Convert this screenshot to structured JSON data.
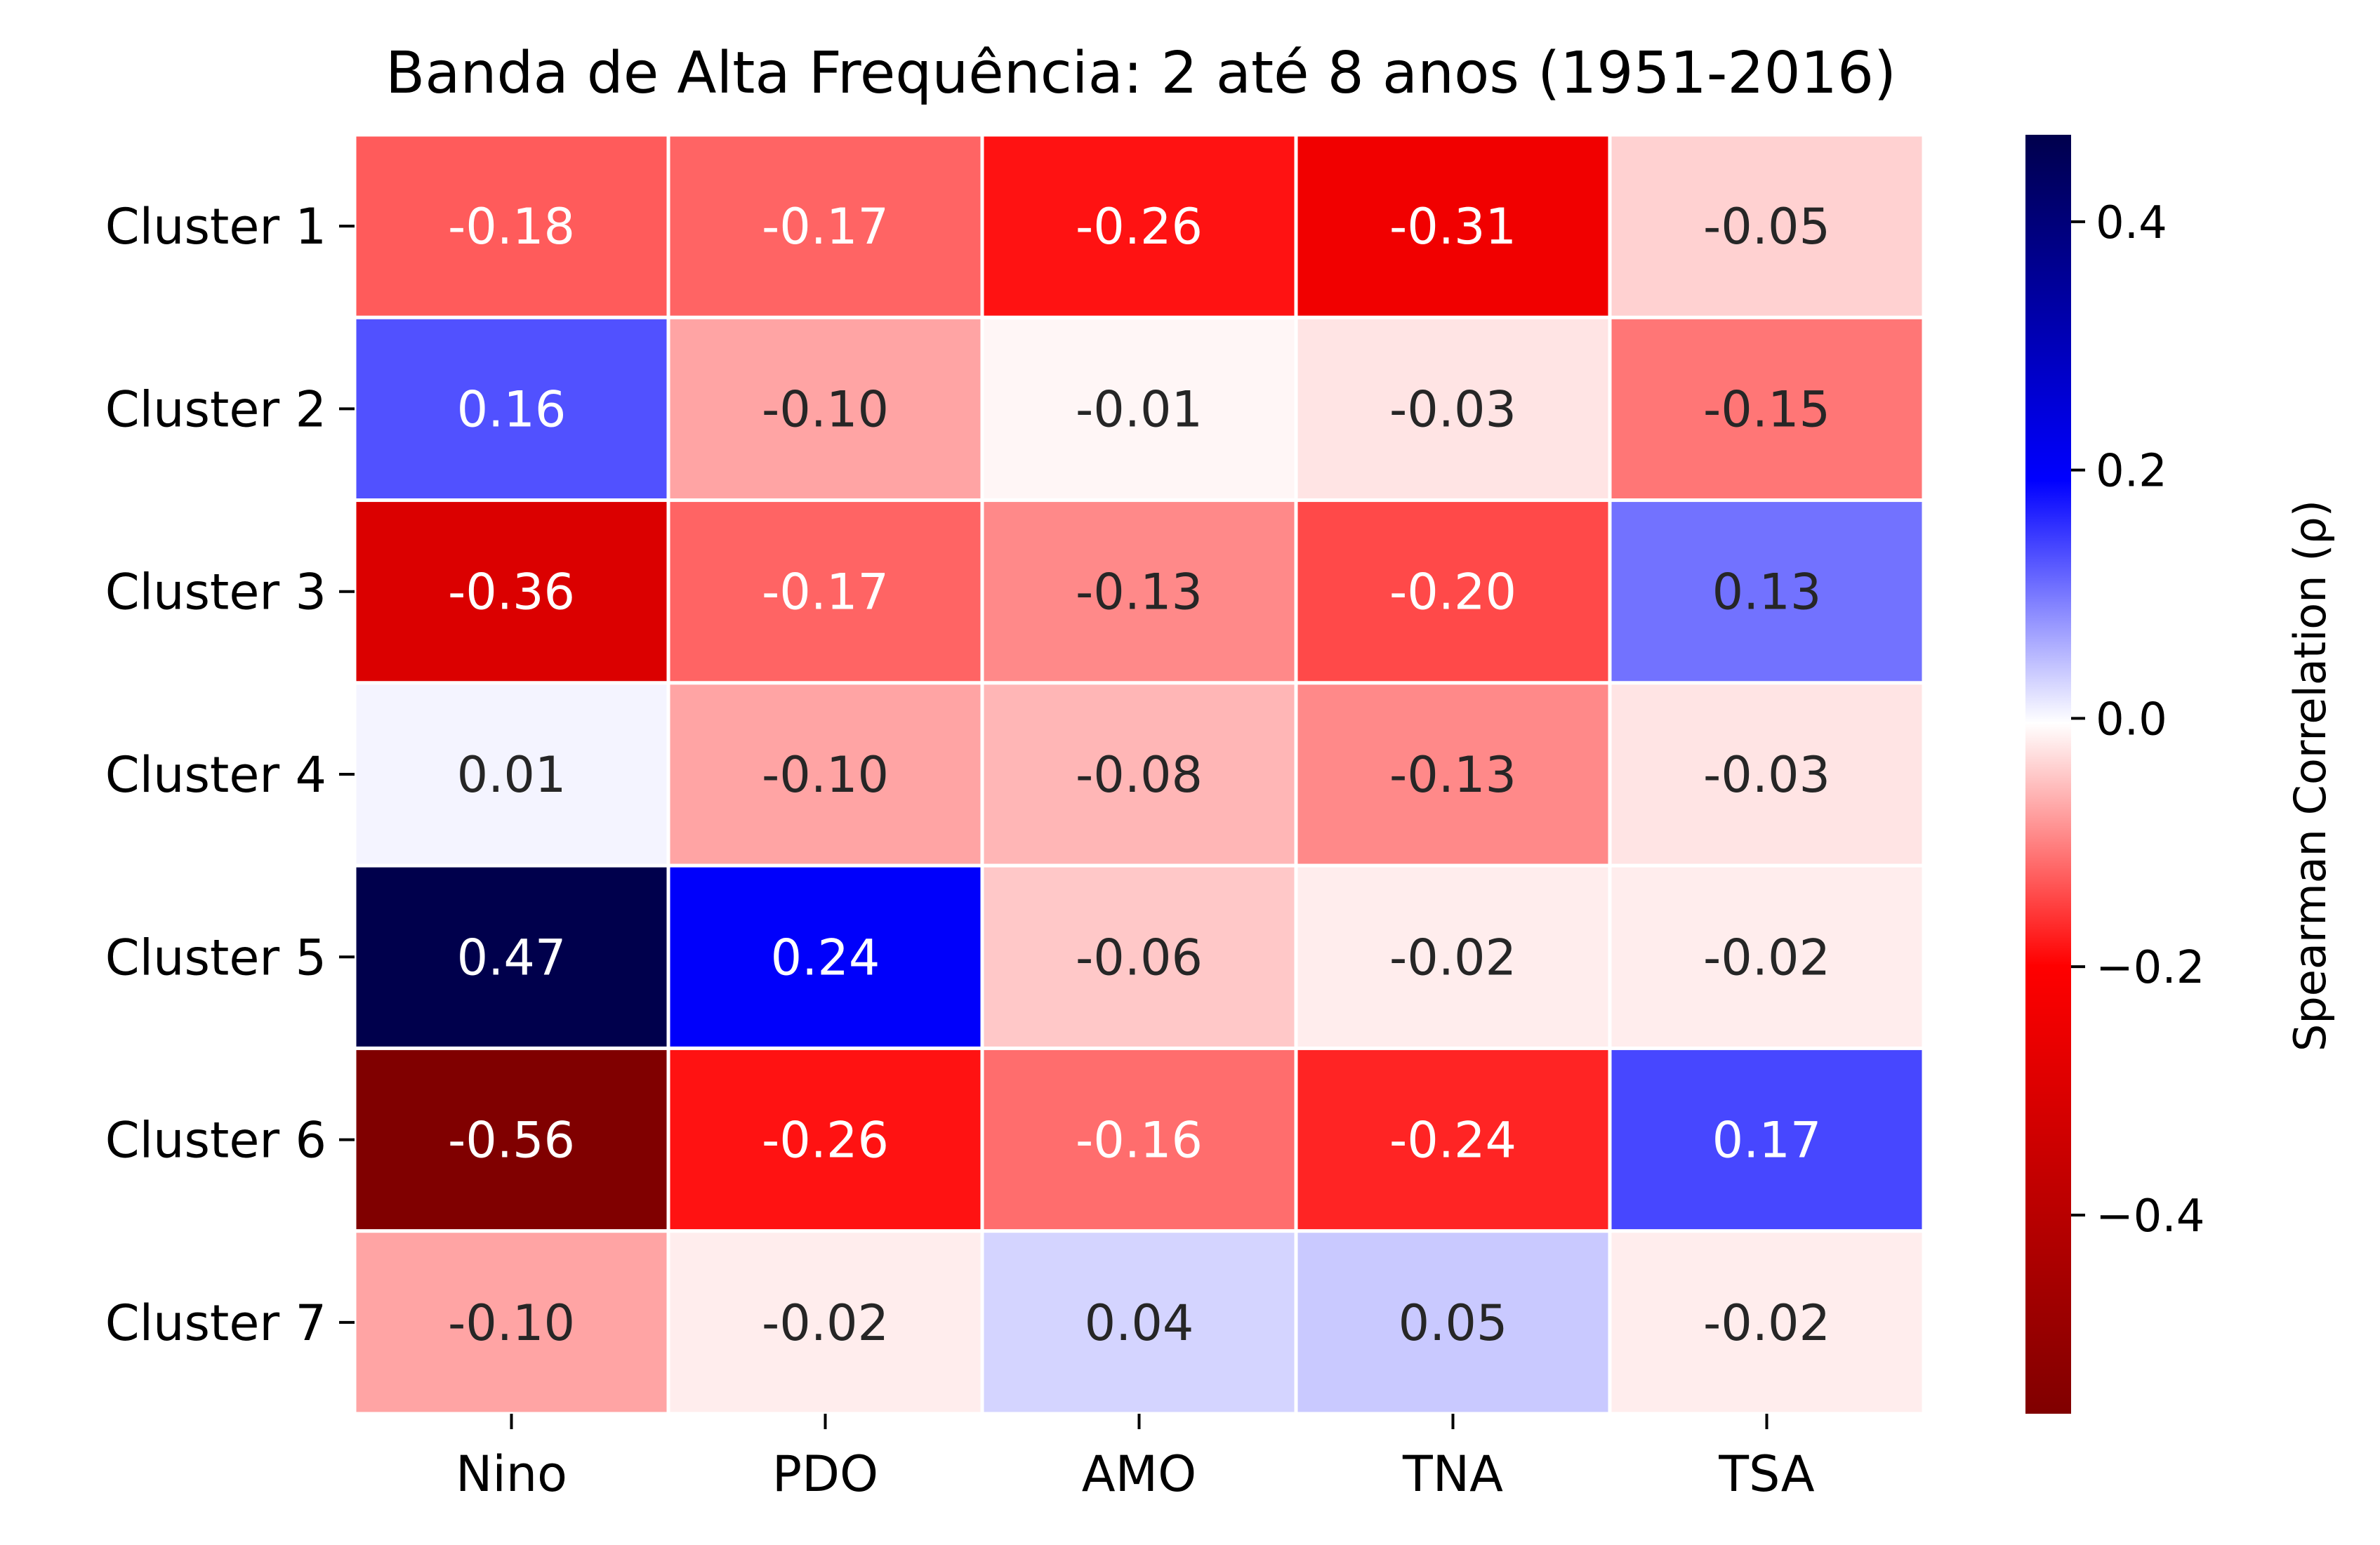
{
  "chart_data": {
    "type": "heatmap",
    "title": "Banda de Alta Frequência: 2 até 8 anos (1951-2016)",
    "x_categories": [
      "Nino",
      "PDO",
      "AMO",
      "TNA",
      "TSA"
    ],
    "y_categories": [
      "Cluster 1",
      "Cluster 2",
      "Cluster 3",
      "Cluster 4",
      "Cluster 5",
      "Cluster 6",
      "Cluster 7"
    ],
    "values": [
      [
        -0.18,
        -0.17,
        -0.26,
        -0.31,
        -0.05
      ],
      [
        0.16,
        -0.1,
        -0.01,
        -0.03,
        -0.15
      ],
      [
        -0.36,
        -0.17,
        -0.13,
        -0.2,
        0.13
      ],
      [
        0.01,
        -0.1,
        -0.08,
        -0.13,
        -0.03
      ],
      [
        0.47,
        0.24,
        -0.06,
        -0.02,
        -0.02
      ],
      [
        -0.56,
        -0.26,
        -0.16,
        -0.24,
        0.17
      ],
      [
        -0.1,
        -0.02,
        0.04,
        0.05,
        -0.02
      ]
    ],
    "value_labels": [
      [
        "-0.18",
        "-0.17",
        "-0.26",
        "-0.31",
        "-0.05"
      ],
      [
        "0.16",
        "-0.10",
        "-0.01",
        "-0.03",
        "-0.15"
      ],
      [
        "-0.36",
        "-0.17",
        "-0.13",
        "-0.20",
        "0.13"
      ],
      [
        "0.01",
        "-0.10",
        "-0.08",
        "-0.13",
        "-0.03"
      ],
      [
        "0.47",
        "0.24",
        "-0.06",
        "-0.02",
        "-0.02"
      ],
      [
        "-0.56",
        "-0.26",
        "-0.16",
        "-0.24",
        "0.17"
      ],
      [
        "-0.10",
        "-0.02",
        "0.04",
        "0.05",
        "-0.02"
      ]
    ],
    "colorbar": {
      "label": "Spearman Correlation (ρ)",
      "vmin": -0.56,
      "vmax": 0.47,
      "ticks": [
        0.4,
        0.2,
        0.0,
        -0.2,
        -0.4
      ],
      "tick_labels": [
        "0.4",
        "0.2",
        "0.0",
        "−0.2",
        "−0.4"
      ],
      "colormap": "seismic_r",
      "colors": {
        "low": "#800000",
        "mid_low": "#ff0000",
        "center": "#ffffff",
        "mid_high": "#0000ff",
        "high": "#00004c"
      }
    },
    "grid": false,
    "cell_border_color": "#ffffff",
    "text_dark": "#262626",
    "text_light": "#ffffff"
  }
}
